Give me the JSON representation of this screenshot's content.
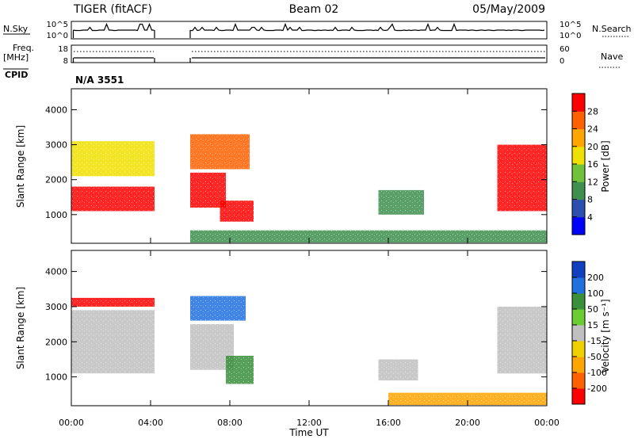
{
  "header": {
    "station": "TIGER (fitACF)",
    "beam": "Beam 02",
    "date": "05/May/2009"
  },
  "left_labels": {
    "nsky": "N.Sky",
    "freq": "Freq.",
    "freq_unit": "[MHz]",
    "cpid": "CPID"
  },
  "right_labels": {
    "nsearch": "N.Search",
    "nave": "Nave"
  },
  "cpid_text": "N/A 3551",
  "nsky_ticks": [
    "10^5",
    "10^0"
  ],
  "freq_ticks": [
    "18",
    "8"
  ],
  "nave_ticks": [
    "60",
    "0"
  ],
  "x_axis": {
    "label": "Time UT",
    "ticks": [
      "00:00",
      "04:00",
      "08:00",
      "12:00",
      "16:00",
      "20:00",
      "00:00"
    ]
  },
  "y_axis": {
    "label": "Slant Range [km]",
    "ticks": [
      "1000",
      "2000",
      "3000",
      "4000"
    ]
  },
  "power_colorbar": {
    "label": "Power [dB]",
    "ticks": [
      "4",
      "8",
      "12",
      "16",
      "20",
      "24",
      "28"
    ],
    "colors": [
      "#0000ff",
      "#2d4fb0",
      "#3f8f4f",
      "#6fc23a",
      "#f0e000",
      "#ffa500",
      "#ff6000",
      "#ff0000"
    ]
  },
  "velocity_colorbar": {
    "label": "Velocity [m s⁻¹]",
    "ticks": [
      "200",
      "100",
      "50",
      "15",
      "-15",
      "-50",
      "-100",
      "-200"
    ],
    "colors": [
      "#1040c0",
      "#2070e0",
      "#3a8f3a",
      "#6ccc33",
      "#c0c0c0",
      "#f0d000",
      "#ffa500",
      "#ff6000",
      "#ff0000"
    ]
  },
  "chart_data": [
    {
      "type": "heatmap",
      "title": "Power",
      "xlabel": "Time UT",
      "ylabel": "Slant Range [km]",
      "xlim": [
        0,
        24
      ],
      "ylim": [
        180,
        4600
      ],
      "colorbar_label": "Power [dB]",
      "data_gaps_hours": [
        [
          4.2,
          6.0
        ]
      ],
      "regions": [
        {
          "t": [
            0.0,
            4.2
          ],
          "r": [
            1100,
            1800
          ],
          "value": 28
        },
        {
          "t": [
            0.0,
            4.2
          ],
          "r": [
            2100,
            3100
          ],
          "value": 16
        },
        {
          "t": [
            6.0,
            7.8
          ],
          "r": [
            1200,
            2200
          ],
          "value": 26
        },
        {
          "t": [
            6.0,
            9.0
          ],
          "r": [
            2300,
            3300
          ],
          "value": 22
        },
        {
          "t": [
            7.5,
            9.2
          ],
          "r": [
            800,
            1400
          ],
          "value": 28
        },
        {
          "t": [
            15.5,
            17.8
          ],
          "r": [
            1000,
            1700
          ],
          "value": 8
        },
        {
          "t": [
            21.5,
            24.0
          ],
          "r": [
            1100,
            3000
          ],
          "value": 26
        },
        {
          "t": [
            6.0,
            24.0
          ],
          "r": [
            200,
            550
          ],
          "value": 6
        }
      ]
    },
    {
      "type": "heatmap",
      "title": "Velocity",
      "xlabel": "Time UT",
      "ylabel": "Slant Range [km]",
      "xlim": [
        0,
        24
      ],
      "ylim": [
        180,
        4600
      ],
      "colorbar_label": "Velocity [m s⁻¹]",
      "data_gaps_hours": [
        [
          4.2,
          6.0
        ]
      ],
      "regions": [
        {
          "t": [
            0.0,
            4.2
          ],
          "r": [
            1100,
            2900
          ],
          "value": 0
        },
        {
          "t": [
            0.0,
            4.2
          ],
          "r": [
            3000,
            3250
          ],
          "value": -150
        },
        {
          "t": [
            6.0,
            8.2
          ],
          "r": [
            1200,
            2500
          ],
          "value": 0
        },
        {
          "t": [
            6.0,
            8.8
          ],
          "r": [
            2600,
            3300
          ],
          "value": 100
        },
        {
          "t": [
            7.8,
            9.2
          ],
          "r": [
            800,
            1600
          ],
          "value": 40
        },
        {
          "t": [
            15.5,
            17.5
          ],
          "r": [
            900,
            1500
          ],
          "value": 0
        },
        {
          "t": [
            21.5,
            24.0
          ],
          "r": [
            1100,
            3000
          ],
          "value": 0
        },
        {
          "t": [
            16.0,
            24.0
          ],
          "r": [
            200,
            550
          ],
          "value": -60
        }
      ]
    }
  ]
}
